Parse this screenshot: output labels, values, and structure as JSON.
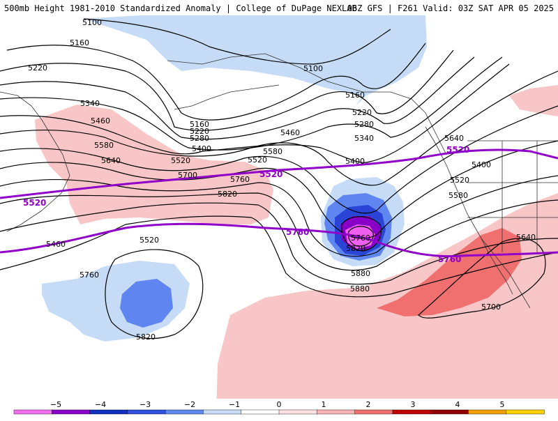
{
  "header": {
    "left": "500mb Height 1981-2010 Standardized Anomaly | College of DuPage NEXLAB",
    "right": "06Z GFS | F261 Valid: 03Z SAT APR 05 2025"
  },
  "map": {
    "contour_labels": [
      "5100",
      "5160",
      "5220",
      "5100",
      "5160",
      "5220",
      "5280",
      "5340",
      "5340",
      "5460",
      "5580",
      "5640",
      "5700",
      "5760",
      "5820",
      "5520",
      "5400",
      "5160",
      "5220",
      "5280",
      "5400",
      "5460",
      "5580",
      "5520",
      "5640",
      "5400",
      "5520",
      "5580",
      "5640",
      "5700",
      "5880",
      "5880",
      "5760",
      "5820",
      "5460",
      "5520",
      "5760",
      "5820"
    ],
    "purple_labels": [
      "5520",
      "5520",
      "5520",
      "5760",
      "5760"
    ],
    "colors": {
      "contour": "#000000",
      "purple_contour": "#9000c8",
      "neg1": "#c6dcf6",
      "neg2": "#5f86f0",
      "neg3": "#2a44d6",
      "neg4": "#8800c8",
      "neg5": "#f060f0",
      "pos1": "#f8c6c6",
      "pos2": "#f07070"
    }
  },
  "colorbar": {
    "ticks": [
      "−5",
      "−4",
      "−3",
      "−2",
      "−1",
      "0",
      "1",
      "2",
      "3",
      "4",
      "5"
    ],
    "colors": [
      "#f070f0",
      "#8a00c8",
      "#1030c0",
      "#3050e0",
      "#6088f0",
      "#c8dcf8",
      "#ffffff",
      "#fde0e0",
      "#f8b4b4",
      "#f07070",
      "#c00000",
      "#900000",
      "#f0a000",
      "#ffd000"
    ]
  }
}
